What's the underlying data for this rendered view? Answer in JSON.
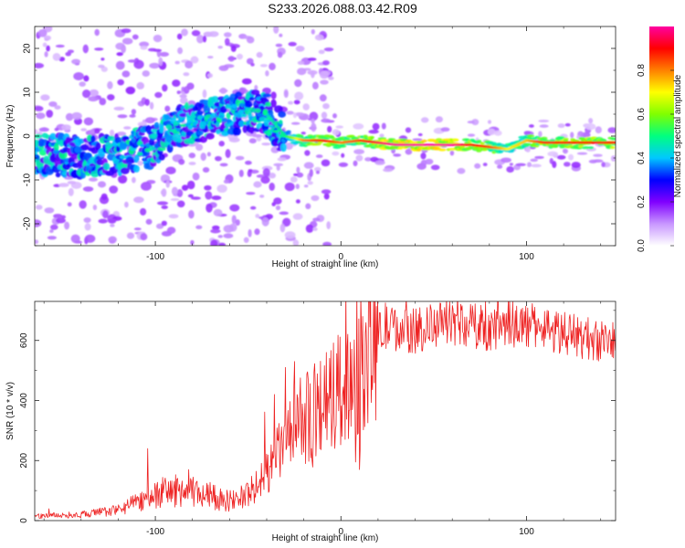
{
  "title": "S233.2026.088.03.42.R09",
  "chart_data": [
    {
      "type": "heatmap",
      "title": "S233.2026.088.03.42.R09",
      "xlabel": "Height of straight line (km)",
      "ylabel": "Frequency (Hz)",
      "xlim": [
        -165,
        148
      ],
      "ylim": [
        -25,
        25
      ],
      "x_ticks": [
        -100,
        0,
        100
      ],
      "y_ticks": [
        -20,
        -10,
        0,
        10,
        20
      ],
      "colorbar": {
        "label": "Normalized spectral amplitude",
        "range": [
          0,
          1
        ],
        "ticks": [
          0.0,
          0.2,
          0.4,
          0.6,
          0.8
        ],
        "colors": [
          "#ffffff",
          "#c896ff",
          "#8000ff",
          "#0000ff",
          "#00c8ff",
          "#00ff80",
          "#80ff00",
          "#ffff00",
          "#ff8000",
          "#ff0000",
          "#ff00a0"
        ]
      },
      "ridge": {
        "x": [
          -160,
          -140,
          -120,
          -100,
          -90,
          -80,
          -70,
          -60,
          -50,
          -40,
          -30,
          -20,
          -10,
          0,
          10,
          20,
          30,
          50,
          60,
          70,
          80,
          90,
          100,
          110,
          130,
          148
        ],
        "freq": [
          -4,
          -5,
          -4,
          -2,
          2,
          3,
          4,
          5,
          6,
          5,
          0,
          -1,
          -1,
          -1.5,
          -1,
          -1.5,
          -2,
          -2,
          -2,
          -2,
          -2.5,
          -3,
          -1,
          -1.5,
          -1.5,
          -1.5
        ],
        "amplitude": [
          0.3,
          0.3,
          0.3,
          0.35,
          0.4,
          0.4,
          0.4,
          0.45,
          0.45,
          0.45,
          0.5,
          0.8,
          0.9,
          0.8,
          0.85,
          0.95,
          1.0,
          1.0,
          1.0,
          0.9,
          0.85,
          0.7,
          0.75,
          0.9,
          0.9,
          0.9
        ]
      }
    },
    {
      "type": "line",
      "xlabel": "Height of straight line (km)",
      "ylabel": "SNR (10 * v/v)",
      "xlim": [
        -165,
        148
      ],
      "ylim": [
        0,
        730
      ],
      "x_ticks": [
        -100,
        0,
        100
      ],
      "y_ticks": [
        0,
        200,
        400,
        600
      ],
      "series": [
        {
          "name": "SNR",
          "color": "#ee2222",
          "envelope_x": [
            -165,
            -140,
            -120,
            -110,
            -100,
            -90,
            -80,
            -70,
            -60,
            -50,
            -45,
            -40,
            -35,
            -30,
            -25,
            -20,
            -15,
            -10,
            -5,
            0,
            5,
            10,
            15,
            20,
            25,
            30,
            40,
            50,
            60,
            70,
            80,
            90,
            100,
            110,
            120,
            130,
            140,
            148
          ],
          "envelope_y": [
            15,
            20,
            35,
            60,
            90,
            100,
            95,
            80,
            65,
            90,
            110,
            160,
            210,
            260,
            290,
            330,
            360,
            390,
            410,
            440,
            470,
            520,
            570,
            620,
            640,
            640,
            630,
            650,
            660,
            650,
            640,
            655,
            650,
            645,
            625,
            610,
            600,
            595
          ],
          "spikes": [
            {
              "x": -104,
              "y": 240
            },
            {
              "x": -82,
              "y": 170
            },
            {
              "x": -36,
              "y": 420
            },
            {
              "x": -30,
              "y": 510
            },
            {
              "x": -22,
              "y": 475
            },
            {
              "x": -8,
              "y": 560
            },
            {
              "x": 8,
              "y": 195
            },
            {
              "x": 10,
              "y": 170
            },
            {
              "x": 14,
              "y": 580
            },
            {
              "x": 24,
              "y": 725
            },
            {
              "x": 52,
              "y": 700
            },
            {
              "x": 78,
              "y": 730
            },
            {
              "x": 91,
              "y": 735
            }
          ]
        }
      ]
    }
  ]
}
